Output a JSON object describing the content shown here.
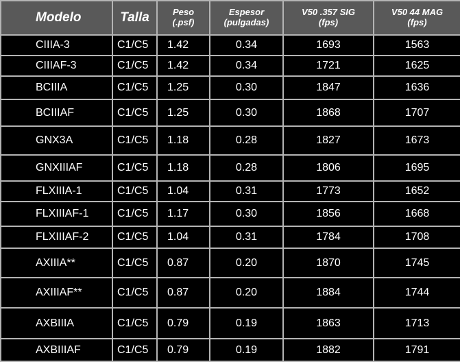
{
  "headers": {
    "modelo": "Modelo",
    "talla": "Talla",
    "peso_1": "Peso",
    "peso_2": "(.psf)",
    "espesor_1": "Espesor",
    "espesor_2": "(pulgadas)",
    "v50a_1": "V50 .357 SIG",
    "v50a_2": "(fps)",
    "v50b_1": "V50 44 MAG",
    "v50b_2": "(fps)"
  },
  "rows": [
    [
      "CIIIA-3",
      "C1/C5",
      "1.42",
      "0.34",
      "1693",
      "1563"
    ],
    [
      "CIIIAF-3",
      "C1/C5",
      "1.42",
      "0.34",
      "1721",
      "1625"
    ],
    [
      "BCIIIA",
      "C1/C5",
      "1.25",
      "0.30",
      "1847",
      "1636"
    ],
    [
      "BCIIIAF",
      "C1/C5",
      "1.25",
      "0.30",
      "1868",
      "1707"
    ],
    [
      "GNX3A",
      "C1/C5",
      "1.18",
      "0.28",
      "1827",
      "1673"
    ],
    [
      "GNXIIIAF",
      "C1/C5",
      "1.18",
      "0.28",
      "1806",
      "1695"
    ],
    [
      "FLXIIIA-1",
      "C1/C5",
      "1.04",
      "0.31",
      "1773",
      "1652"
    ],
    [
      "FLXIIIAF-1",
      "C1/C5",
      "1.17",
      "0.30",
      "1856",
      "1668"
    ],
    [
      "FLXIIIAF-2",
      "C1/C5",
      "1.04",
      "0.31",
      "1784",
      "1708"
    ],
    [
      "AXIIIA**",
      "C1/C5",
      "0.87",
      "0.20",
      "1870",
      "1745"
    ],
    [
      "AXIIIAF**",
      "C1/C5",
      "0.87",
      "0.20",
      "1884",
      "1744"
    ],
    [
      "AXBIIIA",
      "C1/C5",
      "0.79",
      "0.19",
      "1863",
      "1713"
    ],
    [
      "AXBIIIAF",
      "C1/C5",
      "0.79",
      "0.19",
      "1882",
      "1791"
    ]
  ]
}
